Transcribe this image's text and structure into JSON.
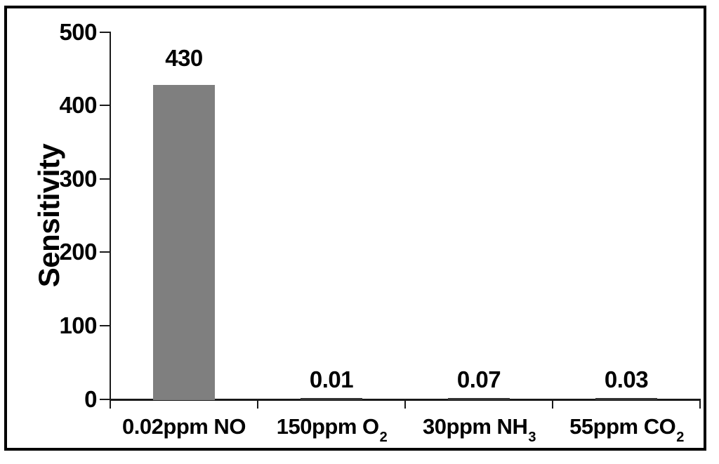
{
  "chart_data": {
    "type": "bar",
    "title": "",
    "xlabel": "",
    "ylabel": "Sensitivity",
    "ylim": [
      0,
      500
    ],
    "ytick_step": 100,
    "ytick_labels": [
      "0",
      "100",
      "200",
      "300",
      "400",
      "500"
    ],
    "grid": false,
    "legend_position": "none",
    "categories": [
      {
        "main": "0.02ppm NO",
        "sub": ""
      },
      {
        "main": "150ppm O",
        "sub": "2"
      },
      {
        "main": "30ppm NH",
        "sub": "3"
      },
      {
        "main": "55ppm CO",
        "sub": "2"
      }
    ],
    "values": [
      430,
      0.01,
      0.07,
      0.03
    ],
    "value_labels": [
      "430",
      "0.01",
      "0.07",
      "0.03"
    ],
    "bar_colors": [
      "#7f7f7f",
      "#333333",
      "#333333",
      "#333333"
    ],
    "axis_color": "#1a1a1a",
    "frame_color": "#000000"
  }
}
